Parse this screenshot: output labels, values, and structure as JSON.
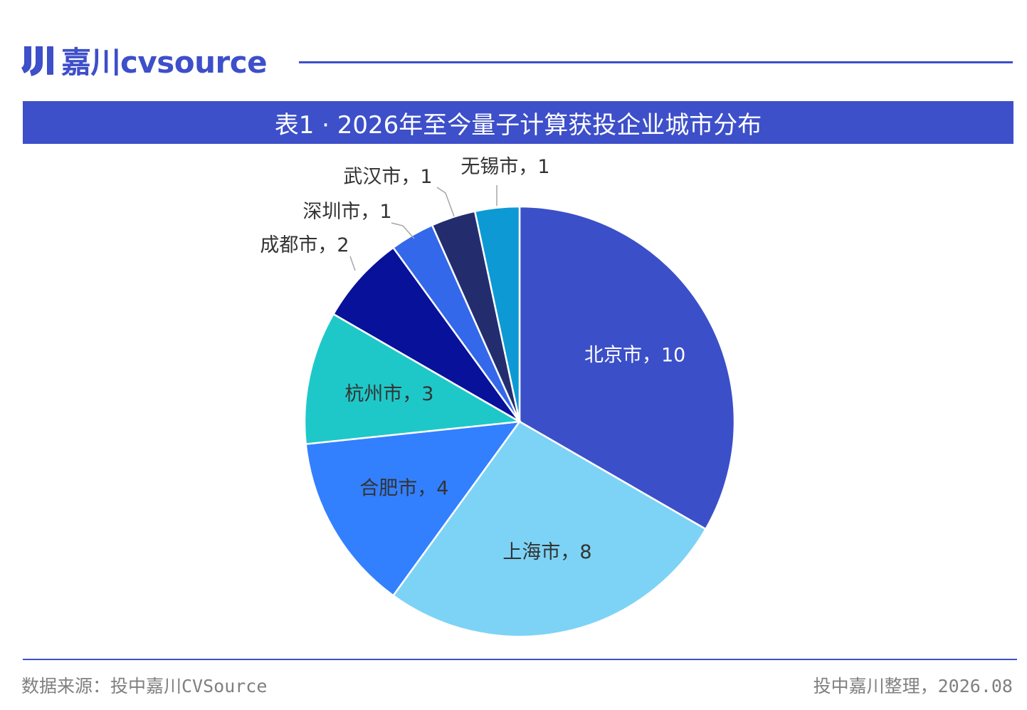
{
  "brand": {
    "name": "嘉川cvsource",
    "color": "#3d4fc9",
    "icon": "brand-logo-icon"
  },
  "title": "表1 · 2026年至今量子计算获投企业城市分布",
  "footer": {
    "source": "数据来源：投中嘉川CVSource",
    "note": "投中嘉川整理，2026.08"
  },
  "chart_data": {
    "type": "pie",
    "title": "表1 · 2026年至今量子计算获投企业城市分布",
    "start_angle_deg": 0,
    "direction": "clockwise",
    "slices": [
      {
        "label": "北京市，10",
        "name": "北京市",
        "value": 10,
        "color": "#3b4fc8",
        "text_color": "#ffffff",
        "label_inside": true
      },
      {
        "label": "上海市，8",
        "name": "上海市",
        "value": 8,
        "color": "#7dd3f5",
        "text_color": "#333333",
        "label_inside": true
      },
      {
        "label": "合肥市，4",
        "name": "合肥市",
        "value": 4,
        "color": "#3380ff",
        "text_color": "#333333",
        "label_inside": true
      },
      {
        "label": "杭州市，3",
        "name": "杭州市",
        "value": 3,
        "color": "#1fc8c8",
        "text_color": "#333333",
        "label_inside": true
      },
      {
        "label": "成都市，2",
        "name": "成都市",
        "value": 2,
        "color": "#08119a",
        "text_color": "#333333",
        "label_inside": false
      },
      {
        "label": "深圳市，1",
        "name": "深圳市",
        "value": 1,
        "color": "#3468ea",
        "text_color": "#333333",
        "label_inside": false
      },
      {
        "label": "武汉市，1",
        "name": "武汉市",
        "value": 1,
        "color": "#232d6e",
        "text_color": "#333333",
        "label_inside": false
      },
      {
        "label": "无锡市，1",
        "name": "无锡市",
        "value": 1,
        "color": "#0d9ad4",
        "text_color": "#333333",
        "label_inside": false
      }
    ]
  }
}
